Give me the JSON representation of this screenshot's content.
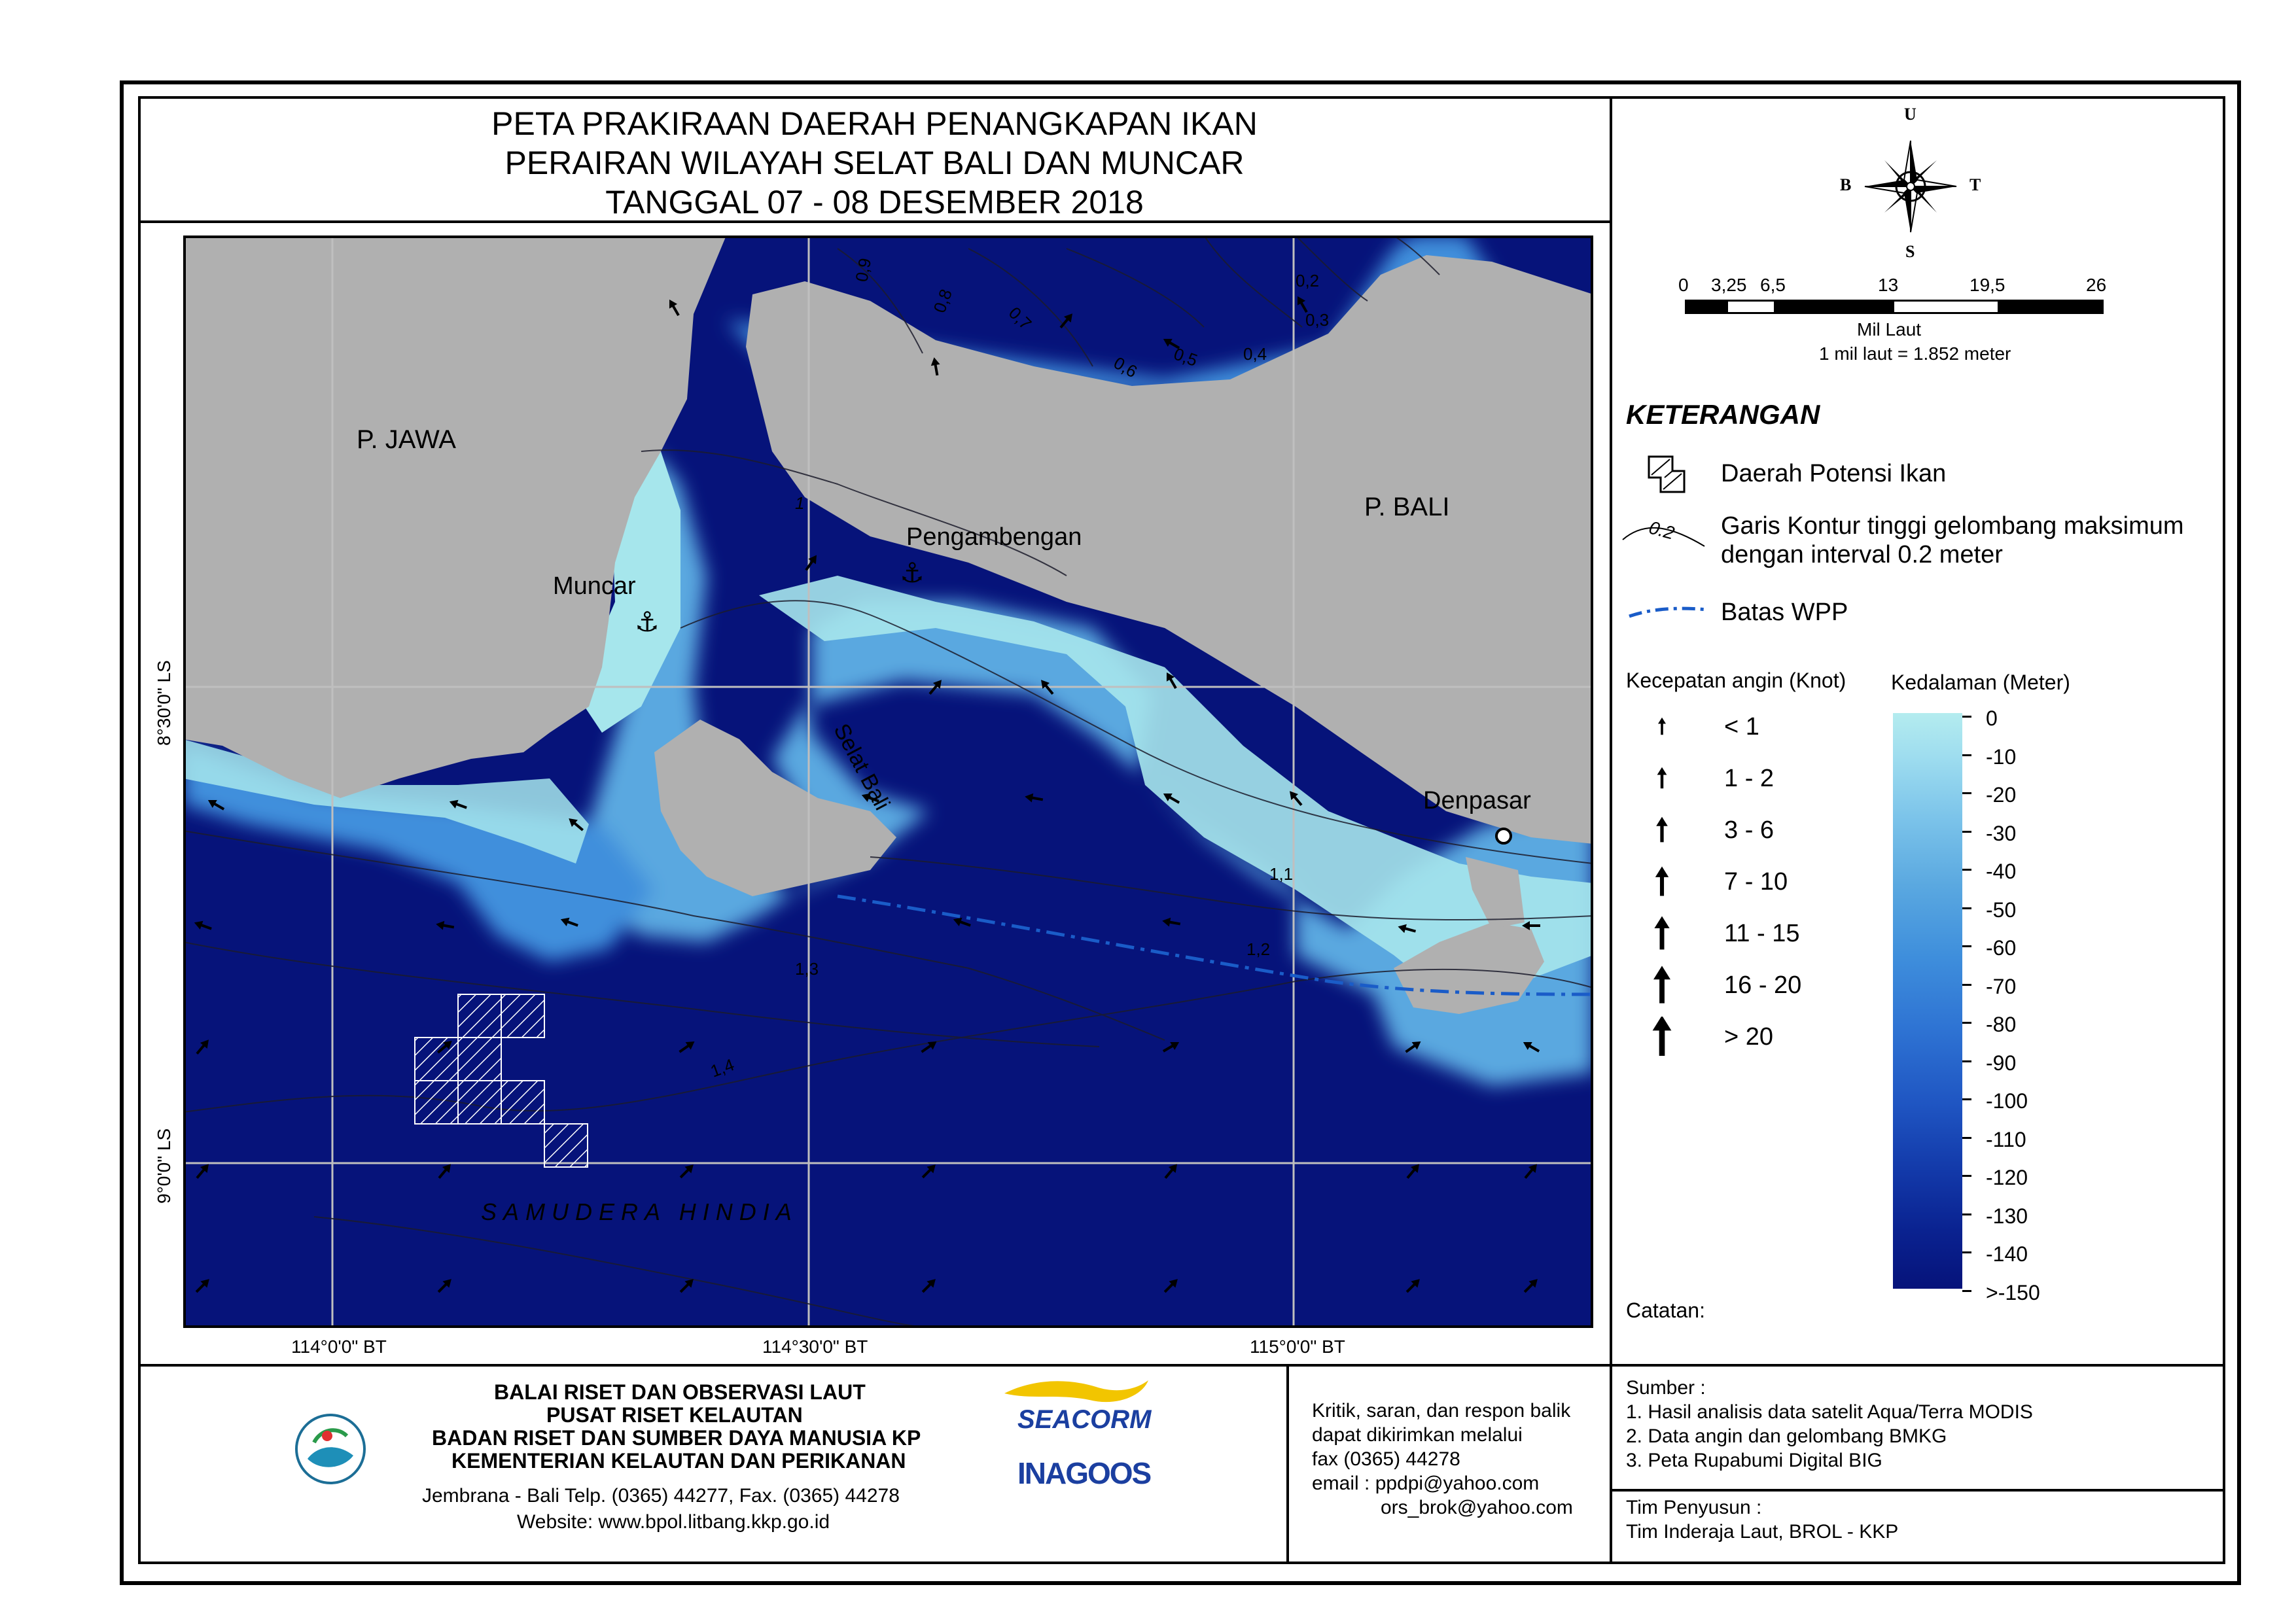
{
  "title": {
    "line1": "PETA PRAKIRAAN DAERAH PENANGKAPAN IKAN",
    "line2": "PERAIRAN WILAYAH SELAT BALI DAN MUNCAR",
    "line3": "TANGGAL 07 - 08 DESEMBER 2018"
  },
  "compass": {
    "north": "U",
    "south": "S",
    "east": "T",
    "west": "B"
  },
  "scale_bar": {
    "ticks": [
      "0",
      "3,25",
      "6,5",
      "13",
      "19,5",
      "26"
    ],
    "unit": "Mil Laut",
    "note": "1 mil laut = 1.852 meter"
  },
  "map": {
    "place_labels": {
      "jawa": "P. JAWA",
      "bali": "P. BALI",
      "muncar": "Muncar",
      "pengambengan": "Pengambengan",
      "denpasar": "Denpasar",
      "selat_bali": "Selat Bali",
      "samudera": "SAMUDERA HINDIA"
    },
    "lat_labels": [
      "8°30'0\" LS",
      "9°0'0\" LS"
    ],
    "lon_labels": [
      "114°0'0\" BT",
      "114°30'0\" BT",
      "115°0'0\" BT"
    ],
    "contour_labels": [
      "0,9",
      "0,8",
      "0,7",
      "0,6",
      "0,5",
      "0,4",
      "0,3",
      "0,2",
      "1",
      "1,1",
      "1,2",
      "1,3",
      "1,4"
    ],
    "colors": {
      "land": "#b0b0b0",
      "deep": "#06137a",
      "shallow": "#a6e6ec",
      "mid": "#3a7fd6",
      "wpp": "#1a5cc8"
    }
  },
  "legend": {
    "heading": "KETERANGAN",
    "fish_zone": "Daerah Potensi Ikan",
    "contour_sample": "0.2",
    "contour_line1": "Garis Kontur tinggi gelombang maksimum",
    "contour_line2": "dengan interval 0.2 meter",
    "wpp": "Batas WPP",
    "wind_title": "Kecepatan angin (Knot)",
    "wind_classes": [
      "< 1",
      "1 - 2",
      "3 - 6",
      "7 - 10",
      "11 - 15",
      "16 - 20",
      "> 20"
    ],
    "depth_title": "Kedalaman (Meter)",
    "depth_ticks": [
      "0",
      "-10",
      "-20",
      "-30",
      "-40",
      "-50",
      "-60",
      "-70",
      "-80",
      "-90",
      "-100",
      "-110",
      "-120",
      "-130",
      "-140",
      ">-150"
    ],
    "notes_label": "Catatan:"
  },
  "footer": {
    "org1": "BALAI RISET DAN OBSERVASI LAUT",
    "org2": "PUSAT RISET KELAUTAN",
    "org3": "BADAN RISET DAN SUMBER DAYA MANUSIA KP",
    "org4": "KEMENTERIAN KELAUTAN DAN PERIKANAN",
    "address": "Jembrana -  Bali Telp. (0365) 44277, Fax. (0365) 44278",
    "website": "Website: www.bpol.litbang.kkp.go.id",
    "logo_seacorm": "SEACORM",
    "logo_inagoos": "INAGOOS",
    "contact1": "Kritik, saran, dan respon balik",
    "contact2": "dapat dikirimkan melalui",
    "contact3": "fax (0365) 44278",
    "contact4": "email : ppdpi@yahoo.com",
    "contact5": "ors_brok@yahoo.com",
    "sources_title": "Sumber :",
    "source1": "1. Hasil analisis data satelit Aqua/Terra MODIS",
    "source2": "2. Data angin dan gelombang BMKG",
    "source3": "3. Peta Rupabumi Digital BIG",
    "team_title": "Tim Penyusun :",
    "team": "Tim Inderaja Laut, BROL - KKP"
  }
}
